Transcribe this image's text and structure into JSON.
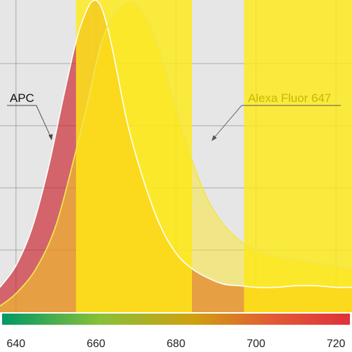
{
  "chart_data": {
    "type": "area",
    "title": "",
    "xlabel": "",
    "ylabel": "",
    "xlim": [
      636,
      724
    ],
    "ylim": [
      0,
      1
    ],
    "x_ticks": [
      640,
      660,
      680,
      700,
      720
    ],
    "x_tick_labels": [
      "640",
      "660",
      "680",
      "700",
      "720"
    ],
    "grid": true,
    "colors": {
      "plot_background": "#e6e6e6",
      "filter_band": "#ffeb14",
      "apc_fill": "#c8141e",
      "alexa_fill": "#ffe614",
      "alexa_line": "#f0e650",
      "gradient": [
        "#009966",
        "#88c038",
        "#d0a010",
        "#e25a36",
        "#e0303a"
      ]
    },
    "filter_bands": [
      {
        "start": 655,
        "end": 684
      },
      {
        "start": 697,
        "end": 724
      }
    ],
    "series": [
      {
        "name": "APC",
        "x": [
          636,
          640,
          644,
          648,
          652,
          655,
          657,
          659,
          661,
          663,
          665,
          668,
          672,
          676,
          680,
          684,
          688,
          692,
          696,
          700,
          705,
          710,
          715,
          720,
          724
        ],
        "values": [
          0.08,
          0.15,
          0.27,
          0.46,
          0.7,
          0.87,
          0.95,
          1.0,
          0.99,
          0.91,
          0.79,
          0.6,
          0.42,
          0.28,
          0.19,
          0.14,
          0.11,
          0.09,
          0.085,
          0.08,
          0.08,
          0.085,
          0.085,
          0.08,
          0.08
        ]
      },
      {
        "name": "Alexa Fluor 647",
        "x": [
          636,
          640,
          645,
          650,
          655,
          658,
          661,
          664,
          667,
          670,
          673,
          676,
          680,
          684,
          688,
          692,
          696,
          700,
          705,
          710,
          715,
          720,
          724
        ],
        "values": [
          0.02,
          0.06,
          0.14,
          0.28,
          0.52,
          0.68,
          0.85,
          0.95,
          0.99,
          0.99,
          0.94,
          0.84,
          0.66,
          0.49,
          0.36,
          0.28,
          0.23,
          0.2,
          0.18,
          0.17,
          0.16,
          0.15,
          0.14
        ]
      }
    ],
    "annotations": [
      {
        "text": "APC",
        "series": "APC"
      },
      {
        "text": "Alexa Fluor 647",
        "series": "Alexa Fluor 647"
      }
    ]
  }
}
